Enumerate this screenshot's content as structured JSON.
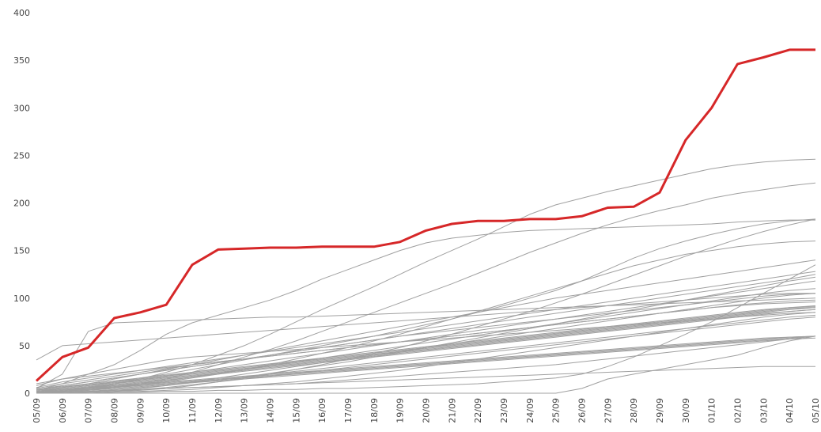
{
  "chart_data": {
    "type": "line",
    "title": "",
    "xlabel": "",
    "ylabel": "",
    "x": [
      "05/09",
      "06/09",
      "07/09",
      "08/09",
      "09/09",
      "10/09",
      "11/09",
      "12/09",
      "13/09",
      "14/09",
      "15/09",
      "16/09",
      "17/09",
      "18/09",
      "19/09",
      "20/09",
      "21/09",
      "22/09",
      "23/09",
      "24/09",
      "25/09",
      "26/09",
      "27/09",
      "28/09",
      "29/09",
      "30/09",
      "01/10",
      "02/10",
      "03/10",
      "04/10",
      "05/10"
    ],
    "ylim": [
      0,
      400
    ],
    "yticks": [
      0,
      50,
      100,
      150,
      200,
      250,
      300,
      350,
      400
    ],
    "grid": false,
    "highlight_color": "#d62728",
    "background_color": "#a0a0a0",
    "highlight_series": {
      "values": [
        13,
        38,
        48,
        79,
        85,
        93,
        135,
        151,
        152,
        153,
        153,
        154,
        154,
        154,
        159,
        171,
        178,
        181,
        181,
        183,
        183,
        186,
        195,
        196,
        211,
        266,
        300,
        346,
        353,
        361,
        361
      ]
    },
    "background_series": [
      {
        "values": [
          3,
          10,
          20,
          30,
          45,
          62,
          74,
          82,
          90,
          98,
          108,
          120,
          130,
          140,
          150,
          158,
          163,
          166,
          169,
          171,
          172,
          173,
          174,
          175,
          176,
          177,
          178,
          180,
          181,
          182,
          182
        ]
      },
      {
        "values": [
          0,
          2,
          5,
          10,
          15,
          22,
          30,
          40,
          50,
          62,
          75,
          88,
          100,
          112,
          125,
          138,
          150,
          162,
          175,
          188,
          198,
          205,
          212,
          218,
          224,
          230,
          236,
          240,
          243,
          245,
          246
        ]
      },
      {
        "values": [
          0,
          1,
          3,
          6,
          10,
          15,
          22,
          30,
          38,
          46,
          55,
          65,
          75,
          85,
          95,
          105,
          115,
          126,
          137,
          148,
          158,
          168,
          177,
          185,
          192,
          198,
          205,
          210,
          214,
          218,
          221
        ]
      },
      {
        "values": [
          2,
          5,
          8,
          12,
          16,
          20,
          25,
          30,
          35,
          40,
          45,
          50,
          55,
          60,
          66,
          72,
          78,
          85,
          92,
          100,
          108,
          118,
          130,
          142,
          152,
          160,
          167,
          173,
          178,
          181,
          183
        ]
      },
      {
        "values": [
          0,
          0,
          1,
          2,
          3,
          5,
          8,
          12,
          16,
          20,
          25,
          30,
          36,
          42,
          48,
          55,
          62,
          70,
          78,
          86,
          95,
          104,
          114,
          124,
          134,
          144,
          153,
          162,
          170,
          177,
          183
        ]
      },
      {
        "values": [
          35,
          50,
          52,
          54,
          56,
          58,
          60,
          62,
          64,
          66,
          68,
          70,
          72,
          74,
          76,
          78,
          80,
          82,
          84,
          86,
          88,
          90,
          92,
          94,
          96,
          98,
          100,
          102,
          104,
          105,
          105
        ]
      },
      {
        "values": [
          5,
          20,
          65,
          74,
          75,
          76,
          77,
          78,
          79,
          80,
          80,
          81,
          82,
          83,
          84,
          85,
          86,
          87,
          88,
          89,
          90,
          91,
          92,
          93,
          94,
          95,
          96,
          97,
          98,
          99,
          100
        ]
      },
      {
        "values": [
          0,
          0,
          0,
          1,
          1,
          2,
          2,
          3,
          3,
          4,
          4,
          5,
          5,
          6,
          7,
          8,
          9,
          10,
          12,
          14,
          16,
          20,
          28,
          38,
          50,
          62,
          75,
          90,
          105,
          120,
          135
        ]
      },
      {
        "values": [
          0,
          3,
          6,
          10,
          14,
          18,
          22,
          26,
          30,
          34,
          38,
          42,
          46,
          50,
          54,
          58,
          62,
          66,
          70,
          74,
          78,
          82,
          86,
          90,
          94,
          98,
          102,
          106,
          110,
          114,
          118
        ]
      },
      {
        "values": [
          2,
          6,
          10,
          15,
          20,
          25,
          30,
          35,
          40,
          45,
          50,
          55,
          60,
          65,
          70,
          75,
          80,
          85,
          90,
          95,
          100,
          104,
          108,
          112,
          116,
          120,
          124,
          128,
          132,
          136,
          140
        ]
      },
      {
        "values": [
          0,
          2,
          4,
          6,
          9,
          12,
          16,
          20,
          25,
          30,
          36,
          42,
          48,
          55,
          62,
          70,
          78,
          86,
          94,
          102,
          110,
          118,
          126,
          134,
          140,
          146,
          150,
          154,
          157,
          159,
          160
        ]
      },
      {
        "values": [
          8,
          15,
          20,
          25,
          30,
          35,
          38,
          40,
          42,
          44,
          46,
          48,
          50,
          52,
          54,
          56,
          58,
          60,
          62,
          64,
          66,
          68,
          70,
          72,
          74,
          76,
          78,
          80,
          82,
          84,
          85
        ]
      },
      {
        "values": [
          0,
          1,
          2,
          4,
          6,
          8,
          11,
          14,
          17,
          21,
          25,
          29,
          33,
          38,
          43,
          48,
          53,
          58,
          63,
          68,
          73,
          78,
          83,
          88,
          93,
          98,
          103,
          108,
          113,
          118,
          122
        ]
      },
      {
        "values": [
          3,
          8,
          12,
          16,
          20,
          24,
          28,
          32,
          36,
          40,
          44,
          48,
          52,
          56,
          60,
          63,
          66,
          69,
          72,
          75,
          78,
          81,
          84,
          87,
          90,
          93,
          96,
          99,
          102,
          104,
          105
        ]
      },
      {
        "values": [
          0,
          0,
          1,
          3,
          5,
          8,
          12,
          16,
          20,
          24,
          28,
          32,
          36,
          40,
          44,
          48,
          52,
          56,
          60,
          64,
          68,
          72,
          76,
          80,
          84,
          88,
          92,
          96,
          100,
          103,
          105
        ]
      },
      {
        "values": [
          5,
          10,
          14,
          18,
          22,
          26,
          30,
          33,
          36,
          39,
          42,
          45,
          48,
          51,
          54,
          57,
          60,
          63,
          66,
          69,
          72,
          75,
          78,
          81,
          84,
          87,
          90,
          92,
          94,
          95,
          96
        ]
      },
      {
        "values": [
          0,
          2,
          4,
          7,
          10,
          13,
          17,
          21,
          25,
          29,
          33,
          37,
          41,
          45,
          49,
          53,
          57,
          61,
          65,
          69,
          73,
          77,
          81,
          85,
          89,
          93,
          97,
          101,
          105,
          108,
          110
        ]
      },
      {
        "values": [
          1,
          3,
          5,
          7,
          9,
          11,
          13,
          15,
          17,
          19,
          21,
          23,
          25,
          27,
          29,
          31,
          33,
          35,
          37,
          39,
          41,
          43,
          45,
          47,
          49,
          51,
          53,
          55,
          57,
          59,
          60
        ]
      },
      {
        "values": [
          0,
          0,
          0,
          1,
          2,
          3,
          4,
          6,
          8,
          10,
          12,
          15,
          18,
          21,
          24,
          28,
          32,
          36,
          40,
          44,
          48,
          52,
          56,
          60,
          64,
          68,
          72,
          76,
          80,
          83,
          85
        ]
      },
      {
        "values": [
          4,
          8,
          12,
          16,
          20,
          24,
          28,
          32,
          36,
          40,
          44,
          48,
          52,
          56,
          60,
          64,
          68,
          72,
          76,
          80,
          84,
          88,
          92,
          96,
          100,
          104,
          108,
          112,
          116,
          120,
          125
        ]
      },
      {
        "values": [
          0,
          1,
          2,
          3,
          4,
          5,
          6,
          7,
          8,
          9,
          10,
          12,
          14,
          16,
          18,
          20,
          22,
          24,
          26,
          28,
          30,
          33,
          36,
          39,
          42,
          45,
          48,
          51,
          54,
          57,
          60
        ]
      },
      {
        "values": [
          2,
          4,
          6,
          8,
          10,
          12,
          14,
          16,
          18,
          20,
          22,
          24,
          26,
          28,
          30,
          32,
          34,
          36,
          38,
          40,
          42,
          44,
          46,
          48,
          50,
          52,
          54,
          56,
          58,
          59,
          60
        ]
      },
      {
        "values": [
          0,
          0,
          0,
          0,
          0,
          0,
          0,
          0,
          0,
          0,
          0,
          0,
          0,
          0,
          0,
          0,
          0,
          0,
          0,
          0,
          0,
          5,
          15,
          20,
          25,
          30,
          35,
          40,
          48,
          55,
          60
        ]
      },
      {
        "values": [
          0,
          2,
          5,
          8,
          11,
          14,
          17,
          20,
          23,
          26,
          29,
          32,
          35,
          38,
          41,
          44,
          47,
          50,
          53,
          56,
          59,
          62,
          65,
          68,
          71,
          74,
          77,
          80,
          83,
          86,
          88
        ]
      },
      {
        "values": [
          10,
          15,
          18,
          21,
          24,
          27,
          30,
          33,
          36,
          39,
          42,
          45,
          48,
          51,
          54,
          57,
          60,
          63,
          66,
          69,
          72,
          75,
          78,
          81,
          84,
          87,
          90,
          93,
          95,
          97,
          98
        ]
      },
      {
        "values": [
          0,
          1,
          2,
          3,
          4,
          5,
          6,
          7,
          8,
          9,
          10,
          11,
          12,
          13,
          14,
          15,
          16,
          17,
          18,
          19,
          20,
          21,
          22,
          23,
          24,
          25,
          26,
          27,
          28,
          28,
          28
        ]
      },
      {
        "values": [
          1,
          2,
          4,
          6,
          8,
          10,
          12,
          14,
          17,
          20,
          23,
          26,
          29,
          32,
          35,
          38,
          41,
          44,
          47,
          50,
          53,
          56,
          59,
          62,
          65,
          68,
          71,
          74,
          77,
          80,
          82
        ]
      },
      {
        "values": [
          3,
          6,
          9,
          12,
          15,
          18,
          21,
          24,
          27,
          30,
          33,
          36,
          39,
          42,
          45,
          48,
          51,
          54,
          57,
          60,
          63,
          66,
          69,
          72,
          75,
          78,
          81,
          84,
          87,
          90,
          92
        ]
      },
      {
        "values": [
          0,
          0,
          1,
          2,
          4,
          6,
          9,
          12,
          15,
          18,
          21,
          24,
          27,
          30,
          33,
          36,
          39,
          42,
          45,
          48,
          51,
          54,
          57,
          60,
          63,
          66,
          69,
          72,
          75,
          78,
          80
        ]
      },
      {
        "values": [
          6,
          12,
          16,
          20,
          24,
          28,
          32,
          36,
          40,
          44,
          48,
          52,
          56,
          60,
          64,
          68,
          72,
          76,
          80,
          84,
          88,
          92,
          96,
          100,
          104,
          108,
          112,
          116,
          120,
          124,
          128
        ]
      },
      {
        "values": [
          0,
          3,
          6,
          9,
          12,
          15,
          18,
          21,
          24,
          27,
          30,
          33,
          36,
          39,
          42,
          45,
          48,
          51,
          54,
          57,
          60,
          63,
          66,
          69,
          72,
          75,
          78,
          81,
          84,
          86,
          88
        ]
      },
      {
        "values": [
          2,
          5,
          8,
          11,
          14,
          17,
          20,
          23,
          26,
          29,
          32,
          35,
          38,
          41,
          44,
          47,
          50,
          53,
          56,
          59,
          62,
          65,
          68,
          71,
          74,
          77,
          80,
          83,
          86,
          89,
          90
        ]
      },
      {
        "values": [
          0,
          1,
          3,
          5,
          7,
          9,
          11,
          13,
          15,
          17,
          19,
          21,
          23,
          25,
          27,
          29,
          31,
          33,
          35,
          37,
          39,
          41,
          43,
          45,
          47,
          49,
          51,
          53,
          55,
          57,
          58
        ]
      },
      {
        "values": [
          4,
          7,
          10,
          13,
          16,
          19,
          22,
          25,
          28,
          31,
          34,
          37,
          40,
          43,
          46,
          49,
          52,
          55,
          58,
          61,
          64,
          67,
          70,
          73,
          76,
          79,
          82,
          85,
          88,
          90,
          91
        ]
      },
      {
        "values": [
          0,
          2,
          4,
          6,
          8,
          10,
          12,
          14,
          16,
          18,
          20,
          22,
          24,
          26,
          28,
          30,
          32,
          34,
          36,
          38,
          40,
          42,
          44,
          46,
          48,
          50,
          52,
          54,
          56,
          58,
          60
        ]
      },
      {
        "values": [
          1,
          4,
          7,
          10,
          13,
          16,
          19,
          22,
          25,
          28,
          31,
          34,
          37,
          40,
          43,
          46,
          49,
          52,
          55,
          58,
          61,
          64,
          67,
          70,
          73,
          76,
          79,
          82,
          85,
          88,
          90
        ]
      }
    ]
  }
}
